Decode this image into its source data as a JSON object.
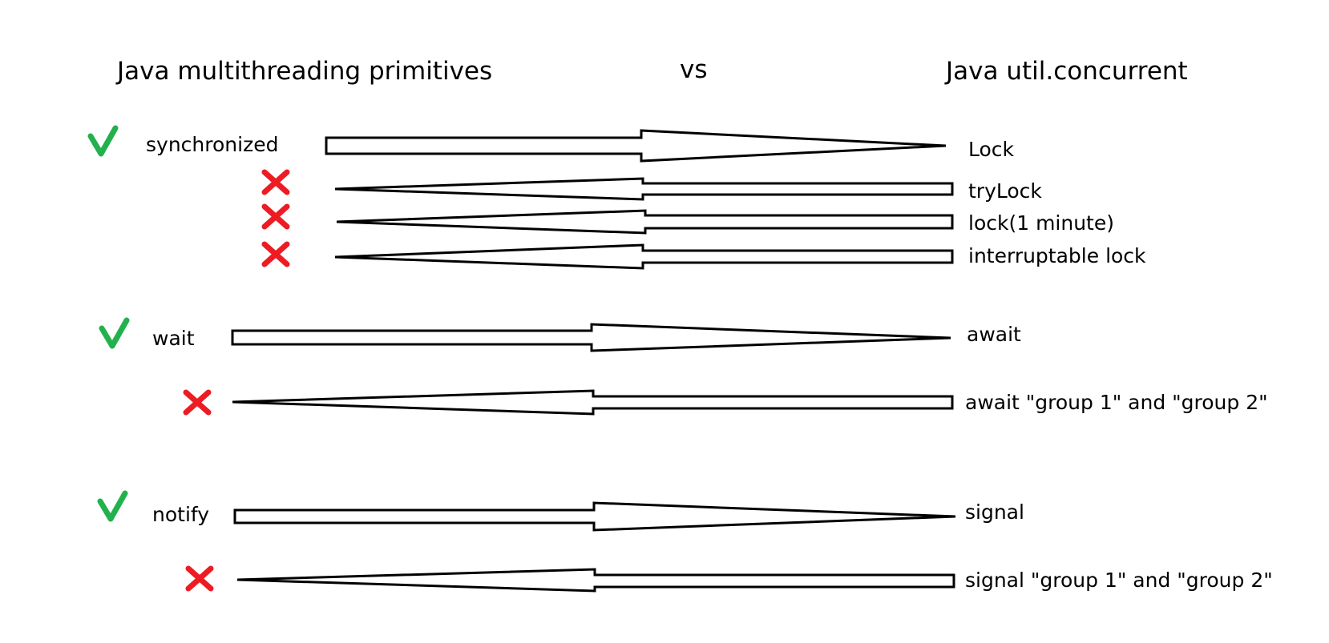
{
  "header": {
    "left": "Java multithreading primitives",
    "middle": "vs",
    "right": "Java util.concurrent"
  },
  "rows": [
    {
      "left": "synchronized",
      "right": "Lock",
      "mark": "check",
      "direction": "right"
    },
    {
      "left": "",
      "right": "tryLock",
      "mark": "cross",
      "direction": "left"
    },
    {
      "left": "",
      "right": "lock(1 minute)",
      "mark": "cross",
      "direction": "left"
    },
    {
      "left": "",
      "right": "interruptable lock",
      "mark": "cross",
      "direction": "left"
    },
    {
      "left": "wait",
      "right": "await",
      "mark": "check",
      "direction": "right"
    },
    {
      "left": "",
      "right": "await \"group 1\" and \"group 2\"",
      "mark": "cross",
      "direction": "left"
    },
    {
      "left": "notify",
      "right": "signal",
      "mark": "check",
      "direction": "right"
    },
    {
      "left": "",
      "right": "signal \"group 1\" and \"group 2\"",
      "mark": "cross",
      "direction": "left"
    }
  ],
  "colors": {
    "check": "#22b14c",
    "cross": "#ed1c24",
    "stroke": "#000000"
  }
}
